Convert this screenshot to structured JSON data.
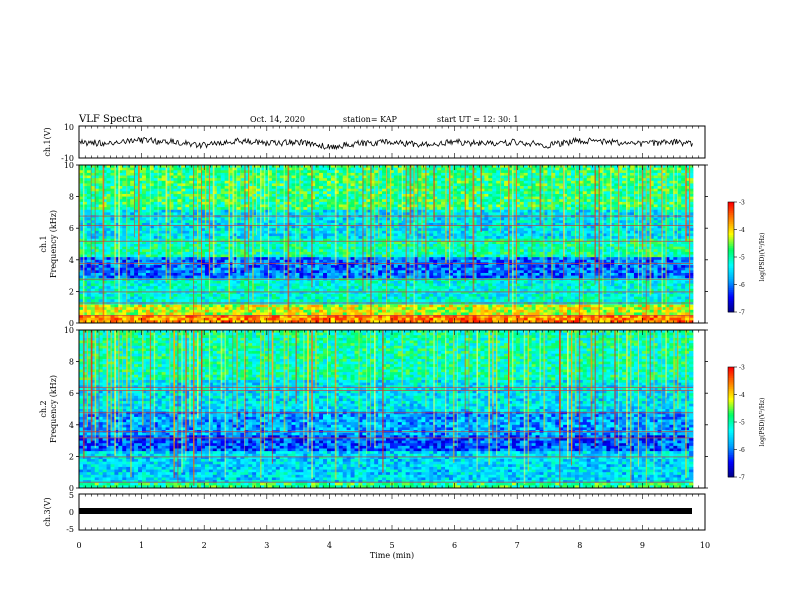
{
  "header": {
    "title": "VLF Spectra",
    "date": "Oct. 14, 2020",
    "station": "station= KAP",
    "start_ut": "start  UT  =   12: 30: 1"
  },
  "chart_data": [
    {
      "type": "line",
      "panel": "ch1-waveform",
      "ylabel": "ch.1(V)",
      "ylim": [
        -10,
        10
      ],
      "yticks": [
        "10",
        "-10"
      ],
      "xlim": [
        0,
        10
      ],
      "x": [
        0,
        0.5,
        1,
        1.5,
        2,
        2.5,
        3,
        3.5,
        4,
        4.5,
        5,
        5.5,
        6,
        6.5,
        7,
        7.5,
        8,
        8.5,
        9,
        9.5,
        9.8
      ],
      "y": [
        0,
        -1,
        1,
        0,
        -2,
        1,
        -1,
        0,
        -3,
        -1,
        0,
        -2,
        0,
        -1,
        0,
        -2,
        1,
        0,
        -1,
        0,
        -1
      ]
    },
    {
      "type": "heatmap",
      "panel": "ch1-spectrogram",
      "ylabel": "ch.1\nFrequency (kHz)",
      "ylim": [
        0,
        10
      ],
      "yticks": [
        "0",
        "2",
        "4",
        "6",
        "8",
        "10"
      ],
      "xlim": [
        0,
        10
      ],
      "colorbar": {
        "label": "log(PSD)(V²/Hz)",
        "range": [
          -7,
          -3
        ],
        "ticks": [
          "-3",
          "-4",
          "-5",
          "-6",
          "-7"
        ]
      }
    },
    {
      "type": "heatmap",
      "panel": "ch2-spectrogram",
      "ylabel": "ch.2\nFrequency (kHz)",
      "ylim": [
        0,
        10
      ],
      "yticks": [
        "0",
        "2",
        "4",
        "6",
        "8",
        "10"
      ],
      "xlim": [
        0,
        10
      ],
      "colorbar": {
        "label": "log(PSD)(V²/Hz)",
        "range": [
          -7,
          -3
        ],
        "ticks": [
          "-3",
          "-4",
          "-5",
          "-6",
          "-7"
        ]
      }
    },
    {
      "type": "line",
      "panel": "ch3-waveform",
      "ylabel": "ch.3(V)",
      "ylim": [
        -5,
        5
      ],
      "yticks": [
        "5",
        "0",
        "-5"
      ],
      "xlim": [
        0,
        10
      ],
      "x": [
        0,
        9.8
      ],
      "y": [
        -1,
        -1
      ]
    }
  ],
  "xaxis": {
    "label": "Time  (min)",
    "ticks": [
      "0",
      "1",
      "2",
      "3",
      "4",
      "5",
      "6",
      "7",
      "8",
      "9",
      "10"
    ]
  },
  "colors": {
    "scale": [
      "#000080",
      "#0000ff",
      "#00a0ff",
      "#00ffff",
      "#00ff66",
      "#ffff00",
      "#ff8000",
      "#ff0000",
      "#ffffff"
    ]
  }
}
